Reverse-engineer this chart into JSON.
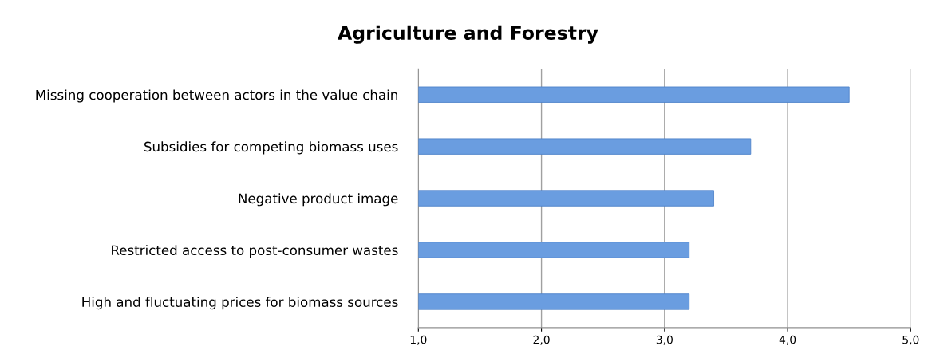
{
  "chart_data": {
    "type": "bar",
    "orientation": "horizontal",
    "title": "Agriculture and Forestry",
    "categories": [
      "Missing cooperation between actors in the value chain",
      "Subsidies for competing biomass uses",
      "Negative product image",
      "Restricted access to post-consumer wastes",
      "High and fluctuating prices for biomass sources"
    ],
    "values": [
      4.5,
      3.7,
      3.4,
      3.2,
      3.2
    ],
    "color": "#6a9de0",
    "xlim": [
      1,
      5
    ],
    "xticks": [
      {
        "value": 1,
        "label": "1,0"
      },
      {
        "value": 2,
        "label": "2,0"
      },
      {
        "value": 3,
        "label": "3,0"
      },
      {
        "value": 4,
        "label": "4,0"
      },
      {
        "value": 5,
        "label": "5,0"
      }
    ],
    "grid": "x",
    "legend": false
  }
}
